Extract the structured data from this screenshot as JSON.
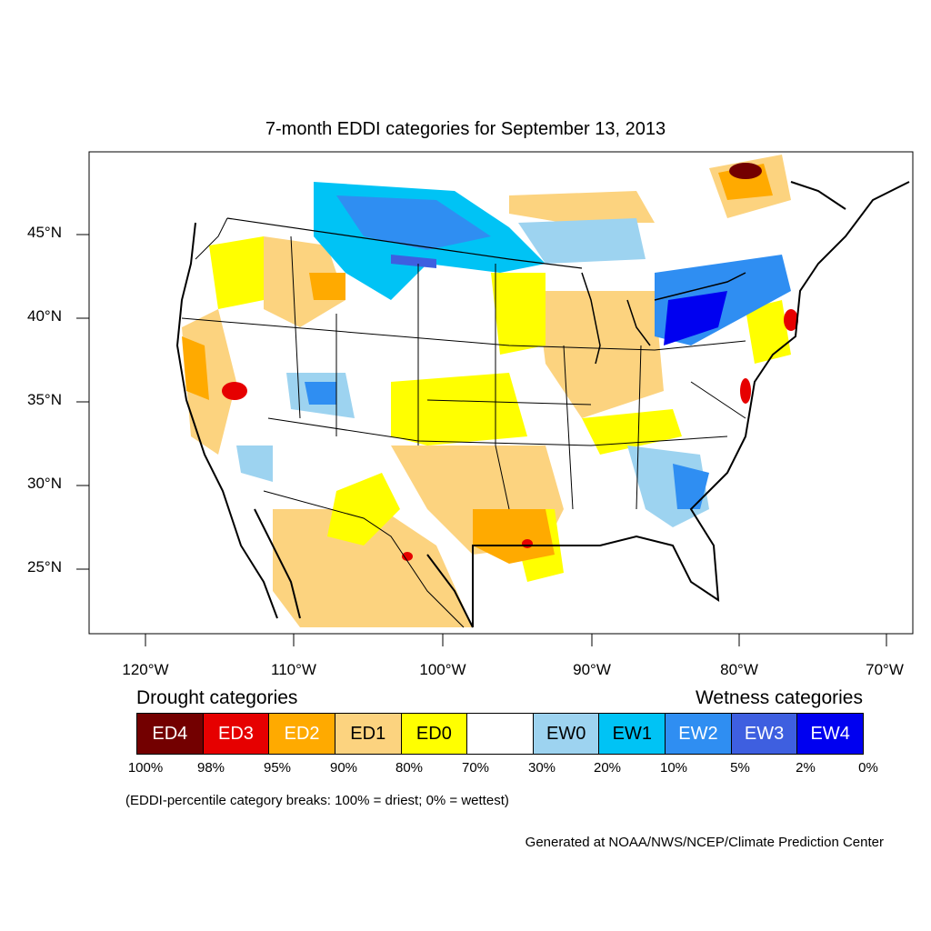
{
  "title": "7-month EDDI categories for September 13, 2013",
  "lat_labels": [
    "45°N",
    "40°N",
    "35°N",
    "30°N",
    "25°N"
  ],
  "lon_labels": [
    "120°W",
    "110°W",
    "100°W",
    "90°W",
    "80°W",
    "70°W"
  ],
  "drought_heading": "Drought categories",
  "wetness_heading": "Wetness categories",
  "legend": [
    {
      "label": "ED4",
      "color": "#730000",
      "text_color": "#ffffff"
    },
    {
      "label": "ED3",
      "color": "#e60000",
      "text_color": "#ffffff"
    },
    {
      "label": "ED2",
      "color": "#ffaa00",
      "text_color": "#ffffff"
    },
    {
      "label": "ED1",
      "color": "#fcd37f",
      "text_color": "#000000"
    },
    {
      "label": "ED0",
      "color": "#ffff00",
      "text_color": "#000000"
    },
    {
      "label": "",
      "color": "#ffffff",
      "text_color": "#000000"
    },
    {
      "label": "EW0",
      "color": "#9dd3f0",
      "text_color": "#000000"
    },
    {
      "label": "EW1",
      "color": "#00c3f5",
      "text_color": "#000000"
    },
    {
      "label": "EW2",
      "color": "#2f8ef2",
      "text_color": "#ffffff"
    },
    {
      "label": "EW3",
      "color": "#3e5fe0",
      "text_color": "#ffffff"
    },
    {
      "label": "EW4",
      "color": "#0000f0",
      "text_color": "#ffffff"
    }
  ],
  "percent_breaks": [
    "100%",
    "98%",
    "95%",
    "90%",
    "80%",
    "70%",
    "30%",
    "20%",
    "10%",
    "5%",
    "2%",
    "0%"
  ],
  "note": "(EDDI-percentile category breaks: 100% = driest; 0% = wettest)",
  "credit": "Generated at NOAA/NWS/NCEP/Climate Prediction Center"
}
